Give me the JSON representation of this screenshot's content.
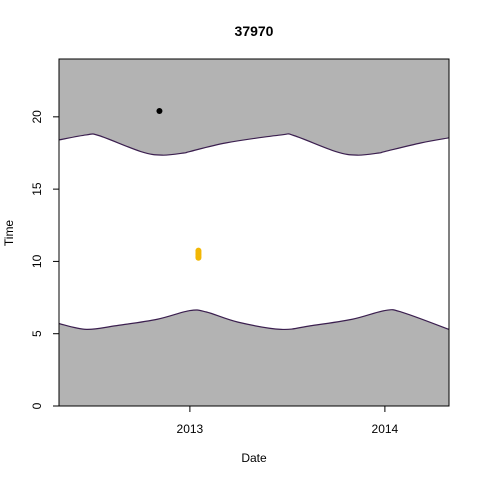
{
  "chart_data": {
    "type": "scatter",
    "title": "37970",
    "xlabel": "Date",
    "ylabel": "Time",
    "xlim": [
      "2012-05-01",
      "2014-05-01"
    ],
    "ylim": [
      0,
      24
    ],
    "x_ticks": [
      {
        "date": "2013-01-01",
        "label": "2013"
      },
      {
        "date": "2014-01-01",
        "label": "2014"
      }
    ],
    "y_ticks": [
      0,
      5,
      10,
      15,
      20
    ],
    "night_region_color": "#b3b3b3",
    "boundary_line_color": "#3b1f4f",
    "grid": false,
    "legend": "none",
    "sunset_curve": [
      {
        "date": "2012-05-01",
        "time": 18.4
      },
      {
        "date": "2012-06-21",
        "time": 18.75
      },
      {
        "date": "2012-07-15",
        "time": 18.7
      },
      {
        "date": "2012-10-01",
        "time": 17.6
      },
      {
        "date": "2012-11-10",
        "time": 17.35
      },
      {
        "date": "2012-12-21",
        "time": 17.5
      },
      {
        "date": "2013-01-01",
        "time": 17.6
      },
      {
        "date": "2013-03-10",
        "time": 18.2
      },
      {
        "date": "2013-06-21",
        "time": 18.75
      },
      {
        "date": "2013-07-15",
        "time": 18.7
      },
      {
        "date": "2013-10-01",
        "time": 17.6
      },
      {
        "date": "2013-11-10",
        "time": 17.35
      },
      {
        "date": "2013-12-21",
        "time": 17.5
      },
      {
        "date": "2014-01-01",
        "time": 17.6
      },
      {
        "date": "2014-03-10",
        "time": 18.2
      },
      {
        "date": "2014-05-01",
        "time": 18.55
      }
    ],
    "sunrise_curve": [
      {
        "date": "2012-05-01",
        "time": 5.7
      },
      {
        "date": "2012-06-21",
        "time": 5.3
      },
      {
        "date": "2012-08-15",
        "time": 5.55
      },
      {
        "date": "2012-11-01",
        "time": 6.0
      },
      {
        "date": "2013-01-01",
        "time": 6.6
      },
      {
        "date": "2013-02-01",
        "time": 6.5
      },
      {
        "date": "2013-04-01",
        "time": 5.8
      },
      {
        "date": "2013-06-21",
        "time": 5.3
      },
      {
        "date": "2013-08-15",
        "time": 5.55
      },
      {
        "date": "2013-11-01",
        "time": 6.0
      },
      {
        "date": "2014-01-01",
        "time": 6.6
      },
      {
        "date": "2014-02-01",
        "time": 6.5
      },
      {
        "date": "2014-05-01",
        "time": 5.3
      }
    ],
    "series": [
      {
        "color": "#000000",
        "points": [
          {
            "date": "2012-11-05",
            "time": 20.4
          }
        ]
      },
      {
        "color": "#f2b705",
        "points": [
          {
            "date": "2013-01-17",
            "time": 10.25
          },
          {
            "date": "2013-01-17",
            "time": 10.35
          },
          {
            "date": "2013-01-17",
            "time": 10.45
          },
          {
            "date": "2013-01-17",
            "time": 10.55
          },
          {
            "date": "2013-01-17",
            "time": 10.65
          },
          {
            "date": "2013-01-17",
            "time": 10.75
          }
        ]
      }
    ]
  }
}
